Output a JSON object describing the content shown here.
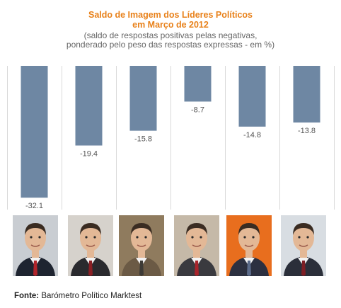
{
  "colors": {
    "bar": "#6e87a3",
    "title": "#e8811a",
    "grid": "#d9d9d9"
  },
  "chart_data": {
    "type": "bar",
    "title": "Saldo de Imagem dos Líderes Políticos",
    "title_line2": "em Março de 2012",
    "subtitle_line1": "(saldo de respostas positivas pelas negativas,",
    "subtitle_line2": "ponderado pelo peso das respostas expressas - em %)",
    "categories": [
      "",
      "",
      "",
      "",
      "",
      ""
    ],
    "values": [
      -32.1,
      -19.4,
      -15.8,
      -8.7,
      -14.8,
      -13.8
    ],
    "value_labels": [
      "-32.1",
      "-19.4",
      "-15.8",
      "-8.7",
      "-14.8",
      "-13.8"
    ],
    "ylim": [
      -35,
      0
    ],
    "grid": true,
    "xlabel": "",
    "ylabel": ""
  },
  "photos": [
    {
      "icon": "portrait-icon",
      "bg": "#c9cdd2",
      "suit": "#1e2430",
      "tie": "#b0242a"
    },
    {
      "icon": "portrait-icon",
      "bg": "#d6d2cc",
      "suit": "#2a2a2e",
      "tie": "#8a1f24"
    },
    {
      "icon": "portrait-icon",
      "bg": "#8f7b5e",
      "suit": "#6b5a45",
      "tie": "#3d3a36"
    },
    {
      "icon": "portrait-icon",
      "bg": "#c5b9a8",
      "suit": "#3a3a3f",
      "tie": "#a8242b"
    },
    {
      "icon": "portrait-icon",
      "bg": "#e86e1e",
      "suit": "#2c3040",
      "tie": "#5b6b8a"
    },
    {
      "icon": "portrait-icon",
      "bg": "#d8dde2",
      "suit": "#2b2f3a",
      "tie": "#7e1e24"
    }
  ],
  "source": {
    "label": "Fonte:",
    "text": " Barómetro Político Marktest"
  }
}
